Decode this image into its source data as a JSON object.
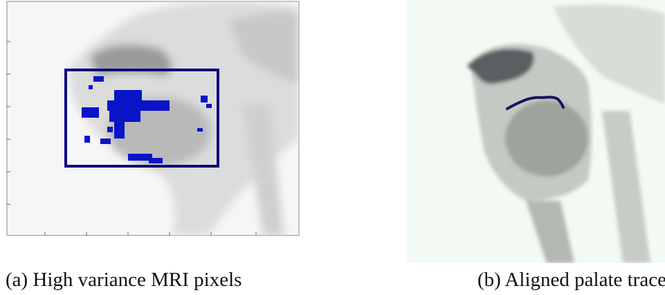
{
  "figure": {
    "panels": [
      {
        "caption": "(a) High variance MRI pixels"
      },
      {
        "caption": "(b) Aligned palate trace"
      }
    ]
  }
}
